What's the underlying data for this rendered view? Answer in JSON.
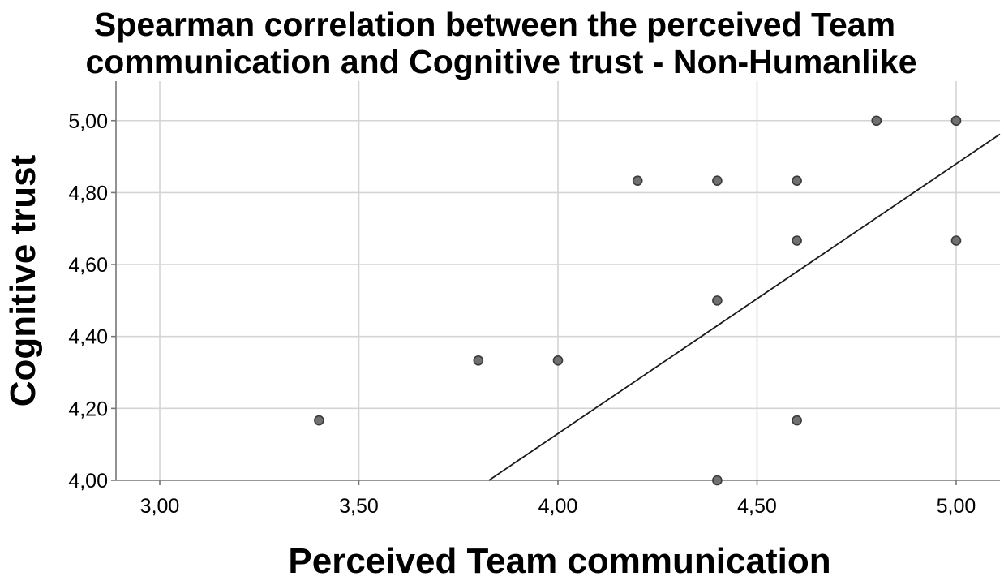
{
  "chart_data": {
    "type": "scatter",
    "title": "Spearman correlation between the perceived Team communication and Cognitive trust - Non-Humanlike",
    "title_lines": [
      "Spearman correlation between the perceived Team",
      "communication and Cognitive trust - Non-Humanlike"
    ],
    "xlabel": "Perceived Team communication",
    "ylabel": "Cognitive trust",
    "xlim": [
      2.89,
      5.11
    ],
    "ylim": [
      4.0,
      5.11
    ],
    "x_ticks": [
      3.0,
      3.5,
      4.0,
      4.5,
      5.0
    ],
    "x_tick_labels": [
      "3,00",
      "3,50",
      "4,00",
      "4,50",
      "5,00"
    ],
    "y_ticks": [
      4.0,
      4.2,
      4.4,
      4.6,
      4.8,
      5.0
    ],
    "y_tick_labels": [
      "4,00",
      "4,20",
      "4,40",
      "4,60",
      "4,80",
      "5,00"
    ],
    "grid": true,
    "points": [
      {
        "x": 3.4,
        "y": 4.1667
      },
      {
        "x": 3.8,
        "y": 4.3333
      },
      {
        "x": 4.0,
        "y": 4.3333
      },
      {
        "x": 4.2,
        "y": 4.8333
      },
      {
        "x": 4.4,
        "y": 4.8333
      },
      {
        "x": 4.4,
        "y": 4.5
      },
      {
        "x": 4.4,
        "y": 4.0
      },
      {
        "x": 4.6,
        "y": 4.8333
      },
      {
        "x": 4.6,
        "y": 4.6667
      },
      {
        "x": 4.6,
        "y": 4.1667
      },
      {
        "x": 4.8,
        "y": 5.0
      },
      {
        "x": 5.0,
        "y": 5.0
      },
      {
        "x": 5.0,
        "y": 4.6667
      }
    ],
    "fit_line": {
      "type": "linear",
      "intercept": 1.13,
      "slope": 0.75
    },
    "colors": {
      "point_fill": "#707070",
      "point_stroke": "#3a3a3a",
      "fit_line": "#1a1a1a",
      "grid": "#d4d4d4"
    }
  }
}
